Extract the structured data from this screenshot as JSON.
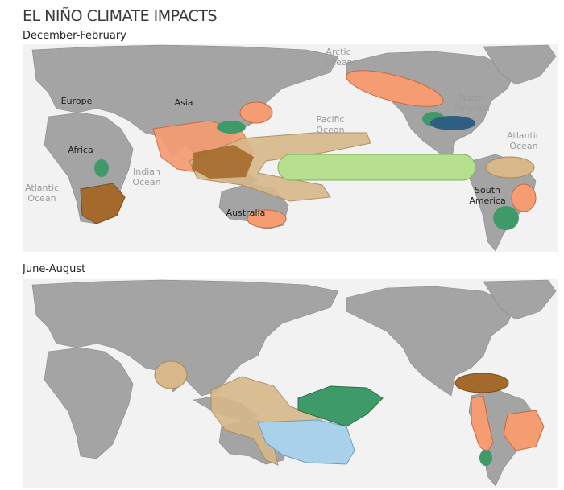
{
  "title": "EL NIÑO CLIMATE IMPACTS",
  "maps": [
    {
      "period": "December-February",
      "labels": [
        {
          "lines": [
            "Arctic",
            "Ocean"
          ]
        },
        {
          "lines": [
            "Europe"
          ]
        },
        {
          "lines": [
            "Asia"
          ]
        },
        {
          "lines": [
            "Pacific",
            "Ocean"
          ]
        },
        {
          "lines": [
            "North",
            "America"
          ]
        },
        {
          "lines": [
            "Atlantic",
            "Ocean"
          ]
        },
        {
          "lines": [
            "Africa"
          ]
        },
        {
          "lines": [
            "Indian",
            "Ocean"
          ]
        },
        {
          "lines": [
            "Atlantic",
            "Ocean"
          ]
        },
        {
          "lines": [
            "South",
            "America"
          ]
        },
        {
          "lines": [
            "Australia"
          ]
        }
      ]
    },
    {
      "period": "June-August"
    }
  ]
}
